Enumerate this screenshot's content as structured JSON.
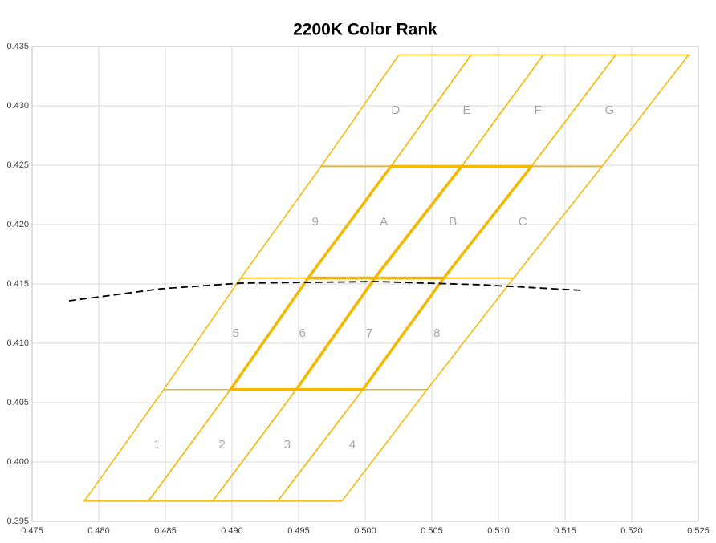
{
  "chart_data": {
    "type": "polygon",
    "title": "2200K Color Rank",
    "xlim": [
      0.475,
      0.525
    ],
    "ylim": [
      0.395,
      0.435
    ],
    "xticks": [
      {
        "value": 0.475,
        "label": "0.475"
      },
      {
        "value": 0.48,
        "label": "0.480"
      },
      {
        "value": 0.485,
        "label": "0.485"
      },
      {
        "value": 0.49,
        "label": "0.490"
      },
      {
        "value": 0.495,
        "label": "0.495"
      },
      {
        "value": 0.5,
        "label": "0.500"
      },
      {
        "value": 0.505,
        "label": "0.505"
      },
      {
        "value": 0.51,
        "label": "0.510"
      },
      {
        "value": 0.515,
        "label": "0.515"
      },
      {
        "value": 0.52,
        "label": "0.520"
      },
      {
        "value": 0.525,
        "label": "0.525"
      }
    ],
    "yticks": [
      {
        "value": 0.395,
        "label": "0.395"
      },
      {
        "value": 0.4,
        "label": "0.400"
      },
      {
        "value": 0.405,
        "label": "0.405"
      },
      {
        "value": 0.41,
        "label": "0.410"
      },
      {
        "value": 0.415,
        "label": "0.415"
      },
      {
        "value": 0.42,
        "label": "0.420"
      },
      {
        "value": 0.425,
        "label": "0.425"
      },
      {
        "value": 0.43,
        "label": "0.430"
      },
      {
        "value": 0.435,
        "label": "0.435"
      }
    ],
    "grid": true,
    "color": "#f5b800",
    "label_color": "#a6a6a6",
    "bins": [
      {
        "label": "1",
        "corners": [
          [
            0.47892,
            0.3967
          ],
          [
            0.48373,
            0.3967
          ],
          [
            0.48988,
            0.4061
          ],
          [
            0.48488,
            0.4061
          ]
        ]
      },
      {
        "label": "2",
        "corners": [
          [
            0.48373,
            0.3967
          ],
          [
            0.48855,
            0.3967
          ],
          [
            0.49482,
            0.4061
          ],
          [
            0.48988,
            0.4061
          ]
        ]
      },
      {
        "label": "3",
        "corners": [
          [
            0.48855,
            0.3967
          ],
          [
            0.49343,
            0.3967
          ],
          [
            0.49982,
            0.4061
          ],
          [
            0.49482,
            0.4061
          ]
        ]
      },
      {
        "label": "4",
        "corners": [
          [
            0.49343,
            0.3967
          ],
          [
            0.49825,
            0.3967
          ],
          [
            0.50464,
            0.4061
          ],
          [
            0.49982,
            0.4061
          ]
        ]
      },
      {
        "label": "5",
        "corners": [
          [
            0.48488,
            0.4061
          ],
          [
            0.48988,
            0.4061
          ],
          [
            0.49572,
            0.4155
          ],
          [
            0.49066,
            0.4155
          ]
        ]
      },
      {
        "label": "6",
        "highlighted": true,
        "corners": [
          [
            0.48988,
            0.4061
          ],
          [
            0.49482,
            0.4061
          ],
          [
            0.50072,
            0.4155
          ],
          [
            0.49572,
            0.4155
          ]
        ]
      },
      {
        "label": "7",
        "highlighted": true,
        "corners": [
          [
            0.49482,
            0.4061
          ],
          [
            0.49982,
            0.4061
          ],
          [
            0.5059,
            0.4155
          ],
          [
            0.50072,
            0.4155
          ]
        ]
      },
      {
        "label": "8",
        "corners": [
          [
            0.49982,
            0.4061
          ],
          [
            0.50464,
            0.4061
          ],
          [
            0.51114,
            0.4155
          ],
          [
            0.5059,
            0.4155
          ]
        ]
      },
      {
        "label": "9",
        "corners": [
          [
            0.49066,
            0.4155
          ],
          [
            0.49572,
            0.4155
          ],
          [
            0.50193,
            0.4249
          ],
          [
            0.49669,
            0.4249
          ]
        ]
      },
      {
        "label": "A",
        "highlighted": true,
        "corners": [
          [
            0.49572,
            0.4155
          ],
          [
            0.50072,
            0.4155
          ],
          [
            0.50723,
            0.4249
          ],
          [
            0.50193,
            0.4249
          ]
        ]
      },
      {
        "label": "B",
        "highlighted": true,
        "corners": [
          [
            0.50072,
            0.4155
          ],
          [
            0.5059,
            0.4155
          ],
          [
            0.51247,
            0.4249
          ],
          [
            0.50723,
            0.4249
          ]
        ]
      },
      {
        "label": "C",
        "corners": [
          [
            0.5059,
            0.4155
          ],
          [
            0.51114,
            0.4155
          ],
          [
            0.51777,
            0.4249
          ],
          [
            0.51247,
            0.4249
          ]
        ]
      },
      {
        "label": "D",
        "corners": [
          [
            0.49669,
            0.4249
          ],
          [
            0.50193,
            0.4249
          ],
          [
            0.50795,
            0.4343
          ],
          [
            0.50253,
            0.4343
          ]
        ]
      },
      {
        "label": "E",
        "corners": [
          [
            0.50193,
            0.4249
          ],
          [
            0.50723,
            0.4249
          ],
          [
            0.51337,
            0.4343
          ],
          [
            0.50795,
            0.4343
          ]
        ]
      },
      {
        "label": "F",
        "corners": [
          [
            0.50723,
            0.4249
          ],
          [
            0.51247,
            0.4249
          ],
          [
            0.5188,
            0.4343
          ],
          [
            0.51337,
            0.4343
          ]
        ]
      },
      {
        "label": "G",
        "corners": [
          [
            0.51247,
            0.4249
          ],
          [
            0.51777,
            0.4249
          ],
          [
            0.52428,
            0.4343
          ],
          [
            0.5188,
            0.4343
          ]
        ]
      }
    ],
    "locus": {
      "color": "#000000",
      "dashed": true,
      "x": [
        0.47777,
        0.48464,
        0.49066,
        0.5009,
        0.50873,
        0.51627
      ],
      "y": [
        0.41358,
        0.41459,
        0.41507,
        0.4152,
        0.41493,
        0.41446
      ]
    }
  }
}
